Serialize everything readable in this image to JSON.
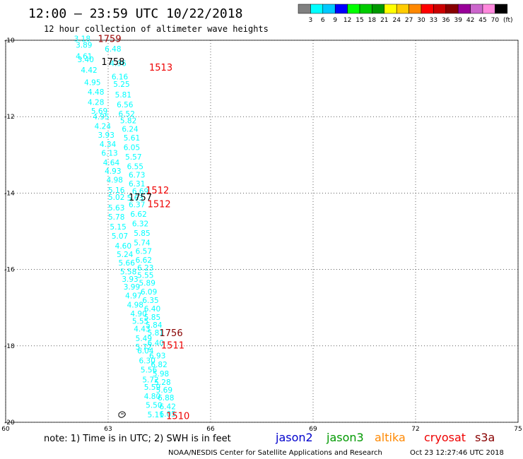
{
  "header": {
    "title": "12:00 — 23:59 UTC 10/22/2018",
    "subtitle": "12 hour collection of altimeter wave heights"
  },
  "colorbar": {
    "swatches": [
      "#808080",
      "#00ffff",
      "#00c8ff",
      "#0000ff",
      "#00ff00",
      "#00cc00",
      "#009900",
      "#ffff00",
      "#ffcc00",
      "#ff8800",
      "#ff0000",
      "#cc0000",
      "#880000",
      "#990099",
      "#cc66cc",
      "#ff88dd",
      "#000000"
    ],
    "labels": [
      "3",
      "6",
      "9",
      "12",
      "15",
      "18",
      "21",
      "24",
      "27",
      "30",
      "33",
      "36",
      "39",
      "42",
      "45",
      "70"
    ],
    "unit": "(ft)"
  },
  "map": {
    "lon_range": [
      60,
      75
    ],
    "lat_range": [
      -20,
      -10
    ],
    "x_ticks": [
      {
        "v": 60,
        "label": "60"
      },
      {
        "v": 63,
        "label": "63"
      },
      {
        "v": 66,
        "label": "66"
      },
      {
        "v": 69,
        "label": "69"
      },
      {
        "v": 72,
        "label": "72"
      },
      {
        "v": 75,
        "label": "75"
      }
    ],
    "y_ticks": [
      {
        "v": -10,
        "label": "-10"
      },
      {
        "v": -12,
        "label": "-12"
      },
      {
        "v": -14,
        "label": "-14"
      },
      {
        "v": -16,
        "label": "-16"
      },
      {
        "v": -18,
        "label": "-18"
      },
      {
        "v": -20,
        "label": "-20"
      }
    ],
    "land_outline": "small island near 63.5E 19.7S",
    "swh_color": "#00ffff",
    "swh_values": [
      {
        "lat": -9.95,
        "lon": 62.0,
        "v": "3.18"
      },
      {
        "lat": -10.12,
        "lon": 62.05,
        "v": "3.89"
      },
      {
        "lat": -10.22,
        "lon": 62.9,
        "v": "6.48"
      },
      {
        "lat": -10.42,
        "lon": 62.05,
        "v": "4.61"
      },
      {
        "lat": -10.5,
        "lon": 62.1,
        "v": "3.40"
      },
      {
        "lat": -10.6,
        "lon": 63.05,
        "v": "4.96"
      },
      {
        "lat": -10.78,
        "lon": 62.2,
        "v": "4.42"
      },
      {
        "lat": -10.95,
        "lon": 63.1,
        "v": "6.16"
      },
      {
        "lat": -11.1,
        "lon": 62.3,
        "v": "4.95"
      },
      {
        "lat": -11.15,
        "lon": 63.15,
        "v": "5.25"
      },
      {
        "lat": -11.35,
        "lon": 62.4,
        "v": "4.48"
      },
      {
        "lat": -11.42,
        "lon": 63.2,
        "v": "5.81"
      },
      {
        "lat": -11.62,
        "lon": 62.4,
        "v": "4.28"
      },
      {
        "lat": -11.68,
        "lon": 63.25,
        "v": "6.56"
      },
      {
        "lat": -11.85,
        "lon": 62.5,
        "v": "5.69"
      },
      {
        "lat": -11.92,
        "lon": 63.3,
        "v": "6.52"
      },
      {
        "lat": -12.0,
        "lon": 62.55,
        "v": "4.95"
      },
      {
        "lat": -12.1,
        "lon": 63.35,
        "v": "5.82"
      },
      {
        "lat": -12.25,
        "lon": 62.6,
        "v": "4.24"
      },
      {
        "lat": -12.32,
        "lon": 63.4,
        "v": "6.24"
      },
      {
        "lat": -12.48,
        "lon": 62.7,
        "v": "3.93"
      },
      {
        "lat": -12.55,
        "lon": 63.45,
        "v": "5.61"
      },
      {
        "lat": -12.72,
        "lon": 62.75,
        "v": "4.34"
      },
      {
        "lat": -12.8,
        "lon": 63.45,
        "v": "6.05"
      },
      {
        "lat": -12.95,
        "lon": 62.8,
        "v": "6.13"
      },
      {
        "lat": -13.05,
        "lon": 63.5,
        "v": "5.57"
      },
      {
        "lat": -13.2,
        "lon": 62.85,
        "v": "4.64"
      },
      {
        "lat": -13.3,
        "lon": 63.55,
        "v": "6.55"
      },
      {
        "lat": -13.42,
        "lon": 62.9,
        "v": "4.93"
      },
      {
        "lat": -13.52,
        "lon": 63.6,
        "v": "6.73"
      },
      {
        "lat": -13.65,
        "lon": 62.95,
        "v": "4.98"
      },
      {
        "lat": -13.75,
        "lon": 63.6,
        "v": "6.31"
      },
      {
        "lat": -13.92,
        "lon": 63.0,
        "v": "5.16"
      },
      {
        "lat": -13.95,
        "lon": 63.7,
        "v": "6.69"
      },
      {
        "lat": -14.1,
        "lon": 63.0,
        "v": "5.02"
      },
      {
        "lat": -14.12,
        "lon": 63.55,
        "v": "5.63"
      },
      {
        "lat": -14.3,
        "lon": 63.6,
        "v": "6.37"
      },
      {
        "lat": -14.38,
        "lon": 63.0,
        "v": "5.63"
      },
      {
        "lat": -14.55,
        "lon": 63.65,
        "v": "6.62"
      },
      {
        "lat": -14.62,
        "lon": 63.0,
        "v": "5.78"
      },
      {
        "lat": -14.8,
        "lon": 63.7,
        "v": "6.32"
      },
      {
        "lat": -14.88,
        "lon": 63.05,
        "v": "5.15"
      },
      {
        "lat": -15.05,
        "lon": 63.75,
        "v": "5.85"
      },
      {
        "lat": -15.12,
        "lon": 63.1,
        "v": "5.07"
      },
      {
        "lat": -15.3,
        "lon": 63.75,
        "v": "5.74"
      },
      {
        "lat": -15.38,
        "lon": 63.2,
        "v": "4.60"
      },
      {
        "lat": -15.52,
        "lon": 63.8,
        "v": "6.57"
      },
      {
        "lat": -15.6,
        "lon": 63.25,
        "v": "5.24"
      },
      {
        "lat": -15.75,
        "lon": 63.8,
        "v": "6.62"
      },
      {
        "lat": -15.82,
        "lon": 63.3,
        "v": "5.66"
      },
      {
        "lat": -15.95,
        "lon": 63.85,
        "v": "6.23"
      },
      {
        "lat": -16.05,
        "lon": 63.35,
        "v": "5.58"
      },
      {
        "lat": -16.15,
        "lon": 63.85,
        "v": "5.55"
      },
      {
        "lat": -16.25,
        "lon": 63.4,
        "v": "3.93"
      },
      {
        "lat": -16.35,
        "lon": 63.9,
        "v": "5.89"
      },
      {
        "lat": -16.45,
        "lon": 63.45,
        "v": "3.99"
      },
      {
        "lat": -16.58,
        "lon": 63.95,
        "v": "6.09"
      },
      {
        "lat": -16.68,
        "lon": 63.5,
        "v": "4.97"
      },
      {
        "lat": -16.8,
        "lon": 64.0,
        "v": "6.35"
      },
      {
        "lat": -16.92,
        "lon": 63.55,
        "v": "4.98"
      },
      {
        "lat": -17.02,
        "lon": 64.05,
        "v": "6.40"
      },
      {
        "lat": -17.15,
        "lon": 63.65,
        "v": "4.90"
      },
      {
        "lat": -17.25,
        "lon": 64.05,
        "v": "5.85"
      },
      {
        "lat": -17.35,
        "lon": 63.7,
        "v": "5.55"
      },
      {
        "lat": -17.45,
        "lon": 64.1,
        "v": "5.84"
      },
      {
        "lat": -17.55,
        "lon": 63.75,
        "v": "4.43"
      },
      {
        "lat": -17.65,
        "lon": 64.15,
        "v": "5.81"
      },
      {
        "lat": -17.8,
        "lon": 63.8,
        "v": "5.49"
      },
      {
        "lat": -17.92,
        "lon": 64.15,
        "v": "6.40"
      },
      {
        "lat": -18.02,
        "lon": 63.8,
        "v": "5.72"
      },
      {
        "lat": -18.12,
        "lon": 63.85,
        "v": "6.04"
      },
      {
        "lat": -18.25,
        "lon": 64.2,
        "v": "6.93"
      },
      {
        "lat": -18.38,
        "lon": 63.9,
        "v": "6.30"
      },
      {
        "lat": -18.48,
        "lon": 64.25,
        "v": "6.82"
      },
      {
        "lat": -18.62,
        "lon": 63.95,
        "v": "5.56"
      },
      {
        "lat": -18.72,
        "lon": 64.3,
        "v": "5.98"
      },
      {
        "lat": -18.88,
        "lon": 64.0,
        "v": "5.72"
      },
      {
        "lat": -18.95,
        "lon": 64.35,
        "v": "5.28"
      },
      {
        "lat": -19.08,
        "lon": 64.05,
        "v": "5.59"
      },
      {
        "lat": -19.15,
        "lon": 64.4,
        "v": "5.69"
      },
      {
        "lat": -19.32,
        "lon": 64.05,
        "v": "4.80"
      },
      {
        "lat": -19.35,
        "lon": 64.45,
        "v": "6.88"
      },
      {
        "lat": -19.55,
        "lon": 64.1,
        "v": "5.50"
      },
      {
        "lat": -19.58,
        "lon": 64.5,
        "v": "6.42"
      },
      {
        "lat": -19.8,
        "lon": 64.15,
        "v": "5.11"
      },
      {
        "lat": -19.78,
        "lon": 64.5,
        "v": "6.05"
      }
    ],
    "time_labels": [
      {
        "lat": -9.95,
        "lon": 62.7,
        "text": "1759",
        "color": "#990000"
      },
      {
        "lat": -10.55,
        "lon": 62.8,
        "text": "1758",
        "color": "#000000"
      },
      {
        "lat": -10.7,
        "lon": 64.2,
        "text": "1513",
        "color": "#ee0000"
      },
      {
        "lat": -13.92,
        "lon": 64.1,
        "text": "1512",
        "color": "#ee0000"
      },
      {
        "lat": -14.1,
        "lon": 63.6,
        "text": "1757",
        "color": "#000000"
      },
      {
        "lat": -14.28,
        "lon": 64.15,
        "text": "1512",
        "color": "#ee0000"
      },
      {
        "lat": -17.65,
        "lon": 64.5,
        "text": "1756",
        "color": "#880000"
      },
      {
        "lat": -17.98,
        "lon": 64.55,
        "text": "1511",
        "color": "#ee0000"
      },
      {
        "lat": -19.82,
        "lon": 64.7,
        "text": "1510",
        "color": "#ee0000"
      }
    ]
  },
  "footer": {
    "note": "note: 1) Time is in UTC; 2) SWH is in feet",
    "satellites": [
      {
        "name": "jason2",
        "color": "#0000cc"
      },
      {
        "name": "jason3",
        "color": "#009900"
      },
      {
        "name": "altika",
        "color": "#ff8800"
      },
      {
        "name": "cryosat",
        "color": "#ee0000"
      },
      {
        "name": "s3a",
        "color": "#880000"
      }
    ],
    "credit": "NOAA/NESDIS Center for Satellite Applications and Research",
    "timestamp": "Oct 23 12:27:46 UTC 2018"
  }
}
